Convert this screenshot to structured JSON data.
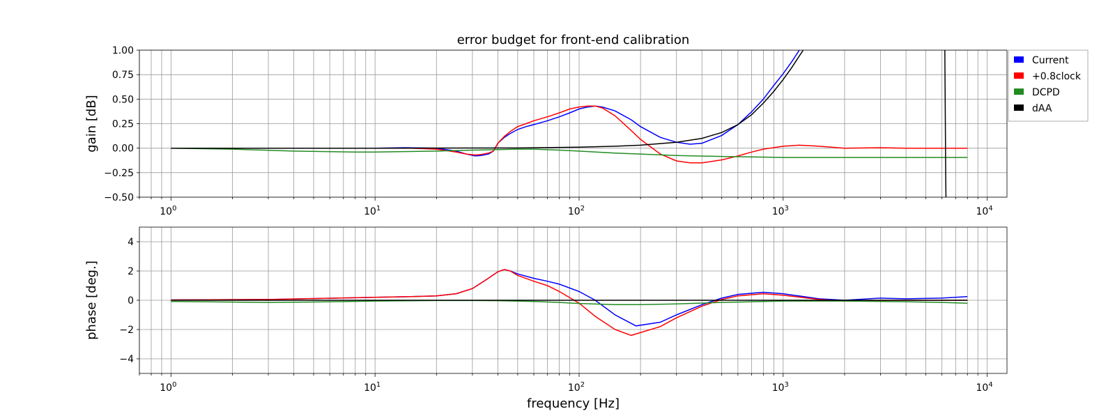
{
  "colors": {
    "Current": "#0000ff",
    "+0.8clock": "#ff0000",
    "DCPD": "#228b22",
    "dAA": "#000000",
    "grid": "#999999"
  },
  "chart_data": [
    {
      "type": "line",
      "title": "error budget for front-end calibration",
      "xlabel": "",
      "ylabel": "gain [dB]",
      "xscale": "log",
      "xlim": [
        0.7,
        12500
      ],
      "ylim": [
        -0.5,
        1.0
      ],
      "yticks": [
        "−0.50",
        "−0.25",
        "0.00",
        "0.25",
        "0.50",
        "0.75",
        "1.00"
      ],
      "grid": true,
      "legend": {
        "placement": "outside-top-right",
        "entries": [
          "Current",
          "+0.8clock",
          "DCPD",
          "dAA"
        ]
      },
      "series": [
        {
          "name": "Current",
          "x": [
            1,
            5,
            10,
            14,
            20,
            25,
            28,
            31,
            33,
            36,
            38,
            40,
            43,
            46,
            50,
            55,
            60,
            70,
            80,
            90,
            100,
            110,
            120,
            130,
            150,
            180,
            200,
            250,
            300,
            350,
            400,
            500,
            600,
            700,
            800,
            900,
            1000,
            1100,
            1200
          ],
          "y": [
            0.0,
            0.0,
            0.0,
            0.005,
            0.0,
            -0.03,
            -0.06,
            -0.08,
            -0.075,
            -0.06,
            -0.03,
            0.05,
            0.11,
            0.15,
            0.19,
            0.22,
            0.24,
            0.28,
            0.32,
            0.36,
            0.4,
            0.42,
            0.43,
            0.42,
            0.38,
            0.29,
            0.22,
            0.11,
            0.06,
            0.04,
            0.05,
            0.13,
            0.24,
            0.37,
            0.5,
            0.64,
            0.76,
            0.88,
            1.0
          ]
        },
        {
          "name": "+0.8clock",
          "x": [
            1,
            5,
            10,
            15,
            20,
            25,
            28,
            31,
            33,
            36,
            38,
            40,
            43,
            46,
            50,
            55,
            60,
            70,
            80,
            90,
            100,
            110,
            120,
            130,
            150,
            180,
            200,
            250,
            300,
            350,
            400,
            500,
            600,
            700,
            800,
            1000,
            1200,
            1500,
            2000,
            3000,
            4000,
            6000,
            8000
          ],
          "y": [
            0.0,
            0.0,
            0.0,
            0.0,
            -0.01,
            -0.04,
            -0.06,
            -0.07,
            -0.065,
            -0.05,
            -0.03,
            0.05,
            0.12,
            0.17,
            0.22,
            0.25,
            0.28,
            0.32,
            0.36,
            0.4,
            0.42,
            0.43,
            0.43,
            0.41,
            0.33,
            0.18,
            0.09,
            -0.06,
            -0.13,
            -0.15,
            -0.15,
            -0.12,
            -0.08,
            -0.04,
            -0.01,
            0.02,
            0.03,
            0.02,
            0.0,
            0.005,
            0.0,
            0.0,
            0.0
          ]
        },
        {
          "name": "DCPD",
          "x": [
            1,
            2,
            4,
            8,
            10,
            20,
            30,
            40,
            50,
            60,
            80,
            100,
            150,
            200,
            300,
            500,
            700,
            1000,
            2000,
            5000,
            8000
          ],
          "y": [
            0.0,
            -0.01,
            -0.03,
            -0.04,
            -0.04,
            -0.03,
            -0.02,
            -0.015,
            -0.01,
            -0.01,
            -0.02,
            -0.03,
            -0.05,
            -0.06,
            -0.075,
            -0.085,
            -0.09,
            -0.095,
            -0.095,
            -0.095,
            -0.095
          ]
        },
        {
          "name": "dAA",
          "x": [
            1,
            10,
            50,
            100,
            150,
            200,
            300,
            400,
            500,
            600,
            700,
            800,
            900,
            1000,
            1100,
            1200,
            1300
          ],
          "y": [
            0.0,
            0.0,
            0.002,
            0.01,
            0.02,
            0.03,
            0.06,
            0.1,
            0.16,
            0.24,
            0.34,
            0.46,
            0.58,
            0.7,
            0.82,
            0.94,
            1.05
          ]
        },
        {
          "name": "dAA",
          "x": [
            6200,
            6210,
            6260,
            6280
          ],
          "y": [
            1.05,
            0.8,
            -0.3,
            -0.55
          ]
        }
      ]
    },
    {
      "type": "line",
      "title": "",
      "xlabel": "frequency [Hz]",
      "ylabel": "phase [deg.]",
      "xscale": "log",
      "xlim": [
        0.7,
        12500
      ],
      "ylim": [
        -5,
        5
      ],
      "yticks": [
        "−4",
        "−2",
        "0",
        "2",
        "4"
      ],
      "xticks": [
        {
          "base": "10",
          "exp": "0"
        },
        {
          "base": "10",
          "exp": "1"
        },
        {
          "base": "10",
          "exp": "2"
        },
        {
          "base": "10",
          "exp": "3"
        },
        {
          "base": "10",
          "exp": "4"
        }
      ],
      "grid": true,
      "series": [
        {
          "name": "Current",
          "x": [
            1,
            3,
            10,
            15,
            20,
            25,
            30,
            35,
            40,
            43,
            46,
            50,
            60,
            70,
            80,
            100,
            120,
            150,
            190,
            250,
            300,
            400,
            500,
            600,
            800,
            1000,
            1500,
            2000,
            3000,
            4000,
            6000,
            8000
          ],
          "y": [
            0.02,
            0.05,
            0.2,
            0.25,
            0.3,
            0.45,
            0.8,
            1.4,
            1.95,
            2.1,
            2.0,
            1.8,
            1.5,
            1.3,
            1.1,
            0.6,
            0.0,
            -1.0,
            -1.75,
            -1.5,
            -1.0,
            -0.3,
            0.15,
            0.4,
            0.55,
            0.45,
            0.1,
            0.0,
            0.15,
            0.1,
            0.15,
            0.25
          ]
        },
        {
          "name": "+0.8clock",
          "x": [
            1,
            3,
            10,
            15,
            20,
            25,
            30,
            35,
            40,
            43,
            46,
            50,
            60,
            70,
            80,
            100,
            120,
            150,
            180,
            250,
            300,
            400,
            500,
            600,
            800,
            1000,
            1500,
            2000,
            3000,
            5000,
            8000
          ],
          "y": [
            0.02,
            0.05,
            0.2,
            0.25,
            0.3,
            0.45,
            0.8,
            1.4,
            1.95,
            2.1,
            2.0,
            1.7,
            1.3,
            1.0,
            0.6,
            -0.2,
            -1.1,
            -2.0,
            -2.4,
            -1.8,
            -1.2,
            -0.4,
            0.05,
            0.3,
            0.45,
            0.35,
            0.05,
            -0.05,
            0.0,
            0.0,
            0.0
          ]
        },
        {
          "name": "DCPD",
          "x": [
            1,
            3,
            5,
            10,
            20,
            30,
            40,
            60,
            80,
            100,
            150,
            200,
            300,
            500,
            800,
            1000,
            2000,
            4000,
            6000,
            8000
          ],
          "y": [
            -0.08,
            -0.15,
            -0.12,
            -0.05,
            -0.02,
            -0.02,
            -0.03,
            -0.08,
            -0.15,
            -0.22,
            -0.3,
            -0.3,
            -0.25,
            -0.15,
            -0.08,
            -0.05,
            -0.05,
            -0.1,
            -0.15,
            -0.2
          ]
        },
        {
          "name": "dAA",
          "x": [
            1,
            10,
            100,
            1000,
            8000
          ],
          "y": [
            0.0,
            0.0,
            0.0,
            0.0,
            0.0
          ]
        }
      ]
    }
  ]
}
